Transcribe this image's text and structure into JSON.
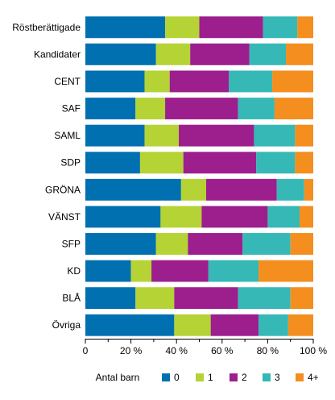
{
  "chart_data": {
    "type": "bar",
    "orientation": "horizontal",
    "stacked": true,
    "percent": true,
    "categories": [
      "Röstberättigade",
      "Kandidater",
      "CENT",
      "SAF",
      "SAML",
      "SDP",
      "GRÖNA",
      "VÄNST",
      "SFP",
      "KD",
      "BLÅ",
      "Övriga"
    ],
    "series": [
      {
        "name": "0",
        "color": "#0070b0",
        "values": [
          35,
          31,
          26,
          22,
          26,
          24,
          42,
          33,
          31,
          20,
          22,
          39
        ]
      },
      {
        "name": "1",
        "color": "#b5d334",
        "values": [
          15,
          15,
          11,
          13,
          15,
          19,
          11,
          18,
          14,
          9,
          17,
          16
        ]
      },
      {
        "name": "2",
        "color": "#9c1f8d",
        "values": [
          28,
          26,
          26,
          32,
          33,
          32,
          31,
          29,
          24,
          25,
          28,
          21
        ]
      },
      {
        "name": "3",
        "color": "#36b8b6",
        "values": [
          15,
          16,
          19,
          16,
          18,
          17,
          12,
          14,
          21,
          22,
          23,
          13
        ]
      },
      {
        "name": "4+",
        "color": "#f38e1f",
        "values": [
          7,
          12,
          18,
          17,
          8,
          8,
          4,
          6,
          10,
          24,
          10,
          11
        ]
      }
    ],
    "xlim": [
      0,
      100
    ],
    "xticks": [
      "0",
      "20 %",
      "40 %",
      "60 %",
      "80 %",
      "100 %"
    ],
    "legend_title": "Antal barn",
    "legend_position": "bottom",
    "grid": false
  }
}
